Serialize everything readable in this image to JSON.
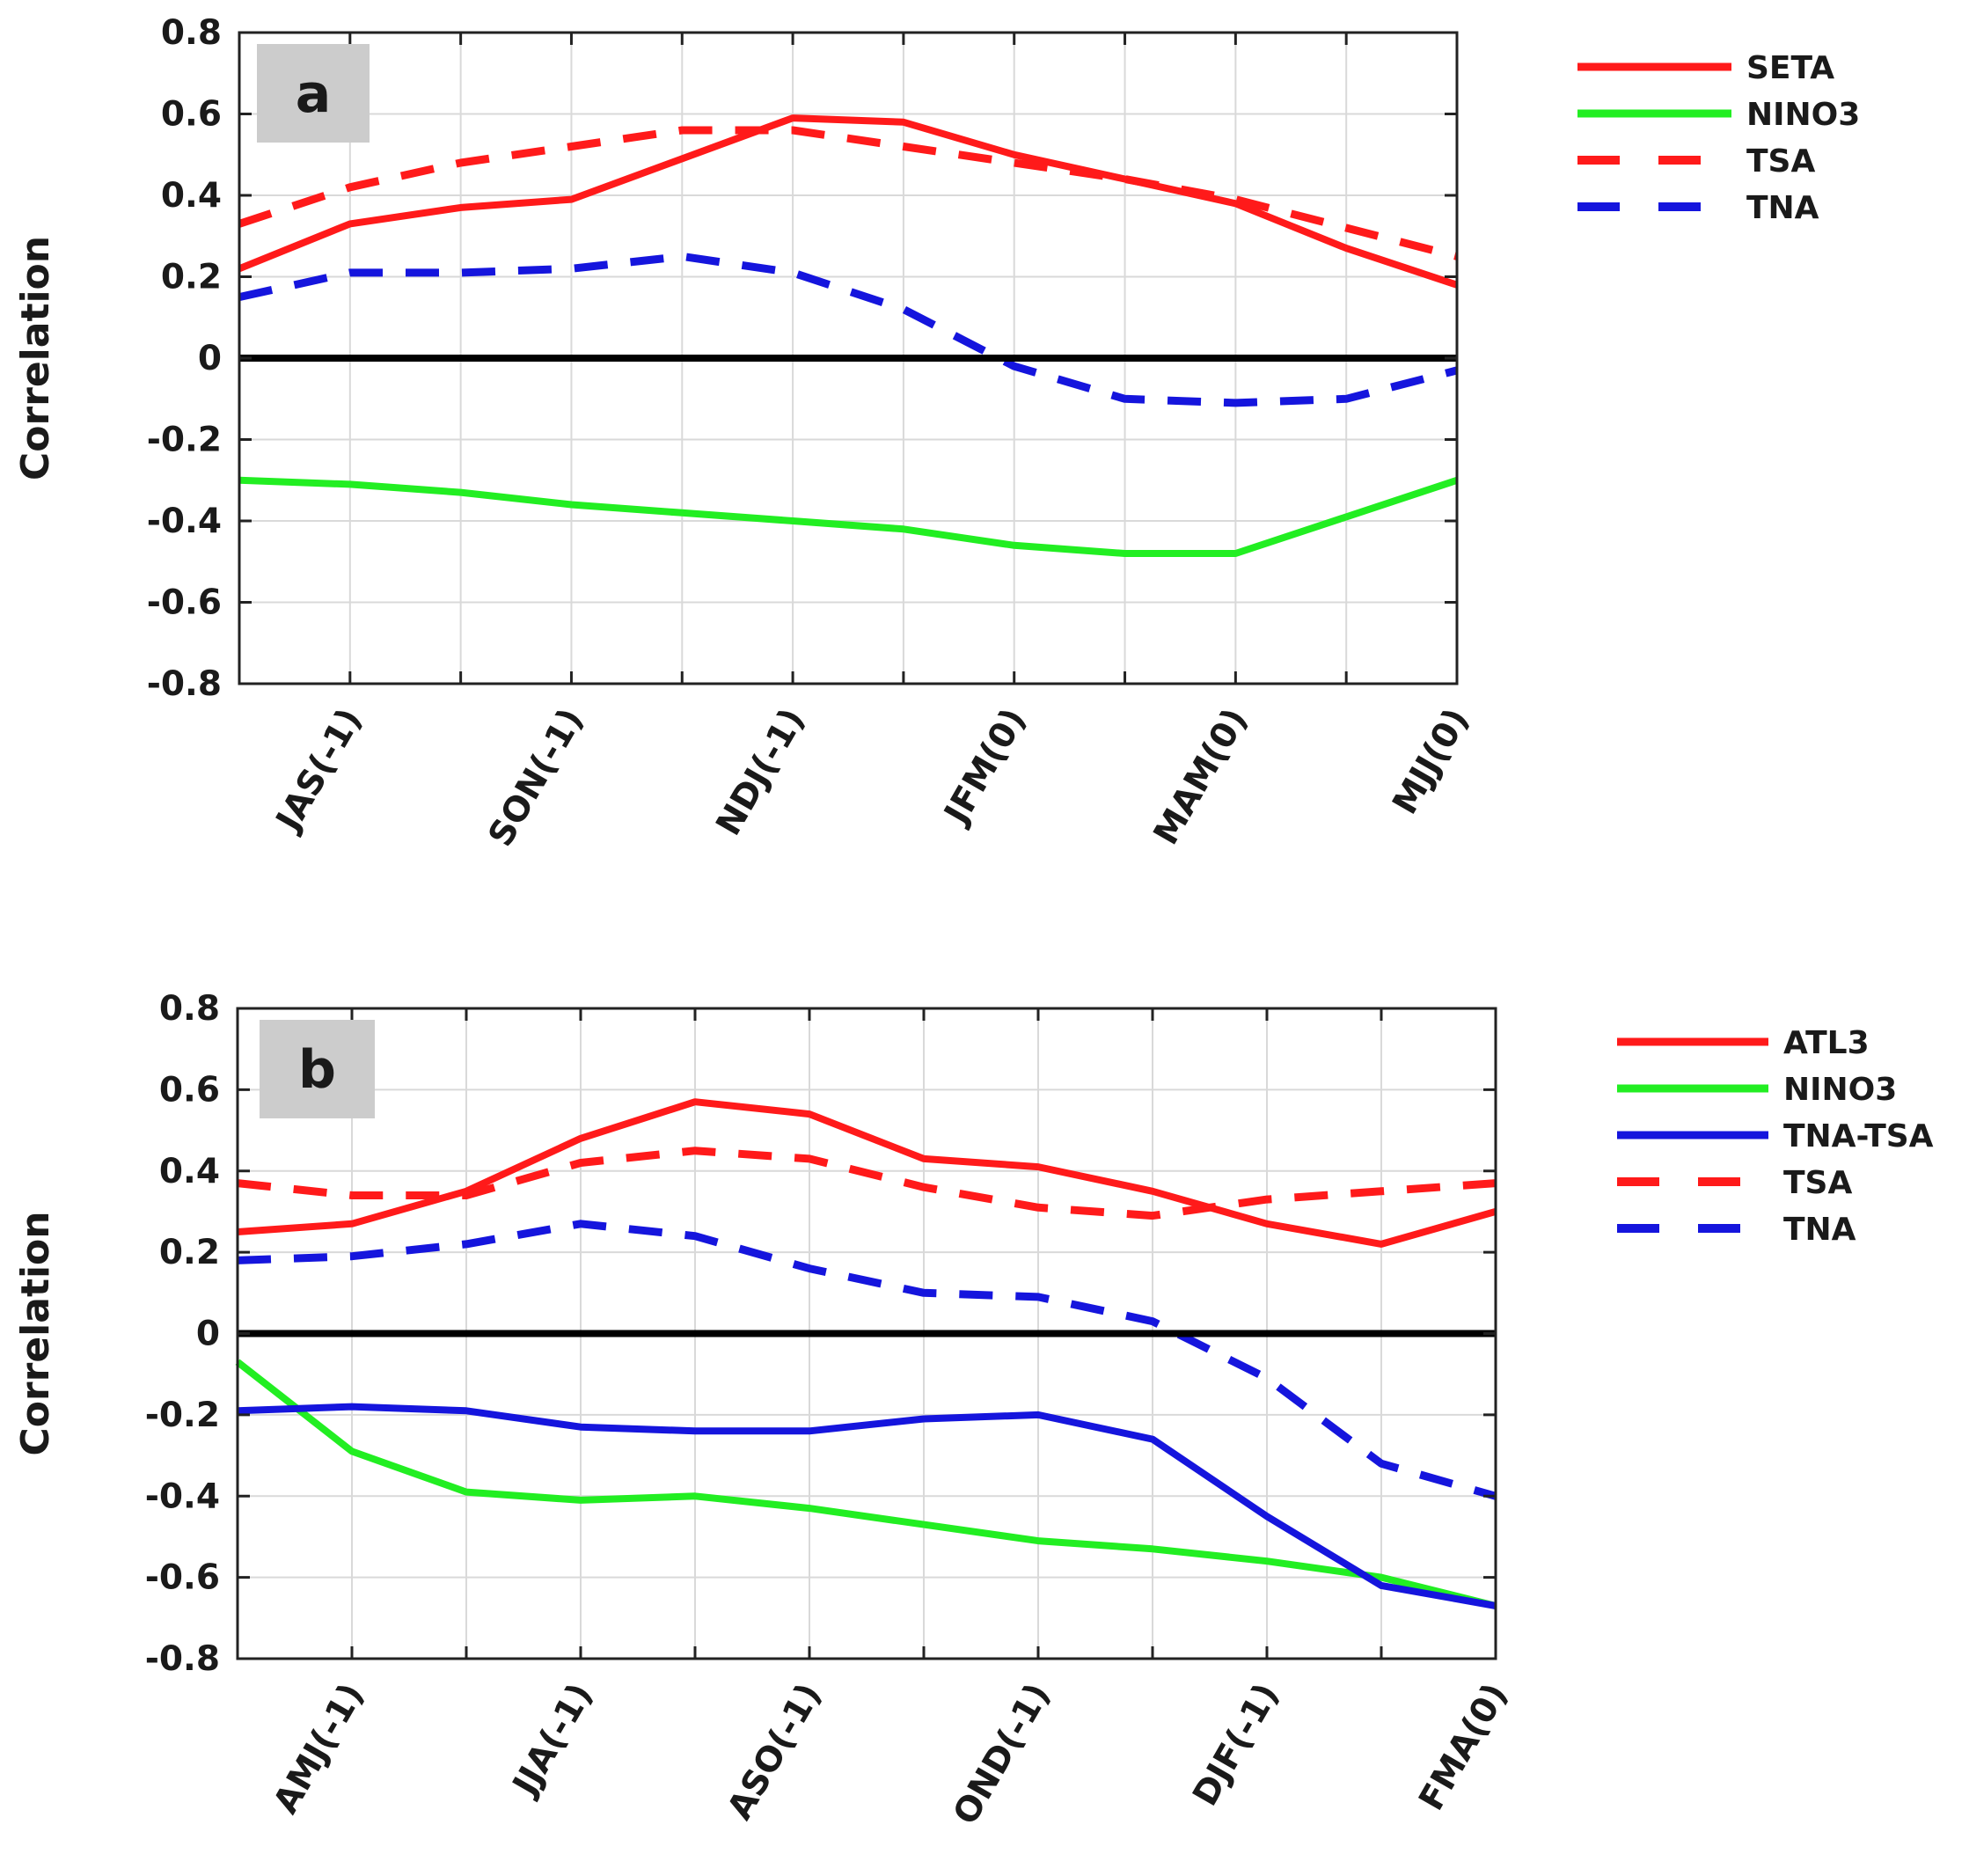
{
  "chart_data": [
    {
      "type": "line",
      "panel_label": "a",
      "ylabel": "Correlation",
      "xlabel": "",
      "ylim": [
        -0.8,
        0.8
      ],
      "yticks": [
        "0.8",
        "0.6",
        "0.4",
        "0.2",
        "0",
        "-0.2",
        "-0.4",
        "-0.6",
        "-0.8"
      ],
      "ytick_values": [
        0.8,
        0.6,
        0.4,
        0.2,
        0,
        -0.2,
        -0.4,
        -0.6,
        -0.8
      ],
      "grid": true,
      "legend_position": "outside-right",
      "num_points": 12,
      "tick_labels": [
        "JAS(-1)",
        "SON(-1)",
        "NDJ(-1)",
        "JFM(0)",
        "MAM(0)",
        "MJJ(0)"
      ],
      "tick_positions": [
        1,
        3,
        5,
        7,
        9,
        11
      ],
      "series": [
        {
          "name": "SETA",
          "color": "#ff1a1a",
          "style": "solid",
          "values": [
            0.22,
            0.33,
            0.37,
            0.39,
            0.49,
            0.59,
            0.58,
            0.5,
            0.44,
            0.38,
            0.27,
            0.18
          ]
        },
        {
          "name": "NINO3",
          "color": "#22ee22",
          "style": "solid",
          "values": [
            -0.3,
            -0.31,
            -0.33,
            -0.36,
            -0.38,
            -0.4,
            -0.42,
            -0.46,
            -0.48,
            -0.48,
            -0.39,
            -0.3
          ]
        },
        {
          "name": "TSA",
          "color": "#ff1a1a",
          "style": "dashed",
          "values": [
            0.33,
            0.42,
            0.48,
            0.52,
            0.56,
            0.56,
            0.52,
            0.48,
            0.44,
            0.39,
            0.32,
            0.25
          ]
        },
        {
          "name": "TNA",
          "color": "#1515dd",
          "style": "dashed",
          "values": [
            0.15,
            0.21,
            0.21,
            0.22,
            0.25,
            0.21,
            0.12,
            -0.02,
            -0.1,
            -0.11,
            -0.1,
            -0.03
          ]
        }
      ]
    },
    {
      "type": "line",
      "panel_label": "b",
      "ylabel": "Correlation",
      "xlabel": "",
      "ylim": [
        -0.8,
        0.8
      ],
      "yticks": [
        "0.8",
        "0.6",
        "0.4",
        "0.2",
        "0",
        "-0.2",
        "-0.4",
        "-0.6",
        "-0.8"
      ],
      "ytick_values": [
        0.8,
        0.6,
        0.4,
        0.2,
        0,
        -0.2,
        -0.4,
        -0.6,
        -0.8
      ],
      "grid": true,
      "legend_position": "outside-right",
      "num_points": 12,
      "tick_labels": [
        "AMJ(-1)",
        "JJA(-1)",
        "ASO(-1)",
        "OND(-1)",
        "DJF(-1)",
        "FMA(0)"
      ],
      "tick_positions": [
        1,
        3,
        5,
        7,
        9,
        11
      ],
      "series": [
        {
          "name": "ATL3",
          "color": "#ff1a1a",
          "style": "solid",
          "values": [
            0.25,
            0.27,
            0.35,
            0.48,
            0.57,
            0.54,
            0.43,
            0.41,
            0.35,
            0.27,
            0.22,
            0.3
          ]
        },
        {
          "name": "NINO3",
          "color": "#22ee22",
          "style": "solid",
          "values": [
            -0.07,
            -0.29,
            -0.39,
            -0.41,
            -0.4,
            -0.43,
            -0.47,
            -0.51,
            -0.53,
            -0.56,
            -0.6,
            -0.67
          ]
        },
        {
          "name": "TNA-TSA",
          "color": "#1515dd",
          "style": "solid",
          "values": [
            -0.19,
            -0.18,
            -0.19,
            -0.23,
            -0.24,
            -0.24,
            -0.21,
            -0.2,
            -0.26,
            -0.45,
            -0.62,
            -0.67
          ]
        },
        {
          "name": "TSA",
          "color": "#ff1a1a",
          "style": "dashed",
          "values": [
            0.37,
            0.34,
            0.34,
            0.42,
            0.45,
            0.43,
            0.36,
            0.31,
            0.29,
            0.33,
            0.35,
            0.37
          ]
        },
        {
          "name": "TNA",
          "color": "#1515dd",
          "style": "dashed",
          "values": [
            0.18,
            0.19,
            0.22,
            0.27,
            0.24,
            0.16,
            0.1,
            0.09,
            0.03,
            -0.11,
            -0.32,
            -0.4
          ]
        }
      ]
    }
  ]
}
